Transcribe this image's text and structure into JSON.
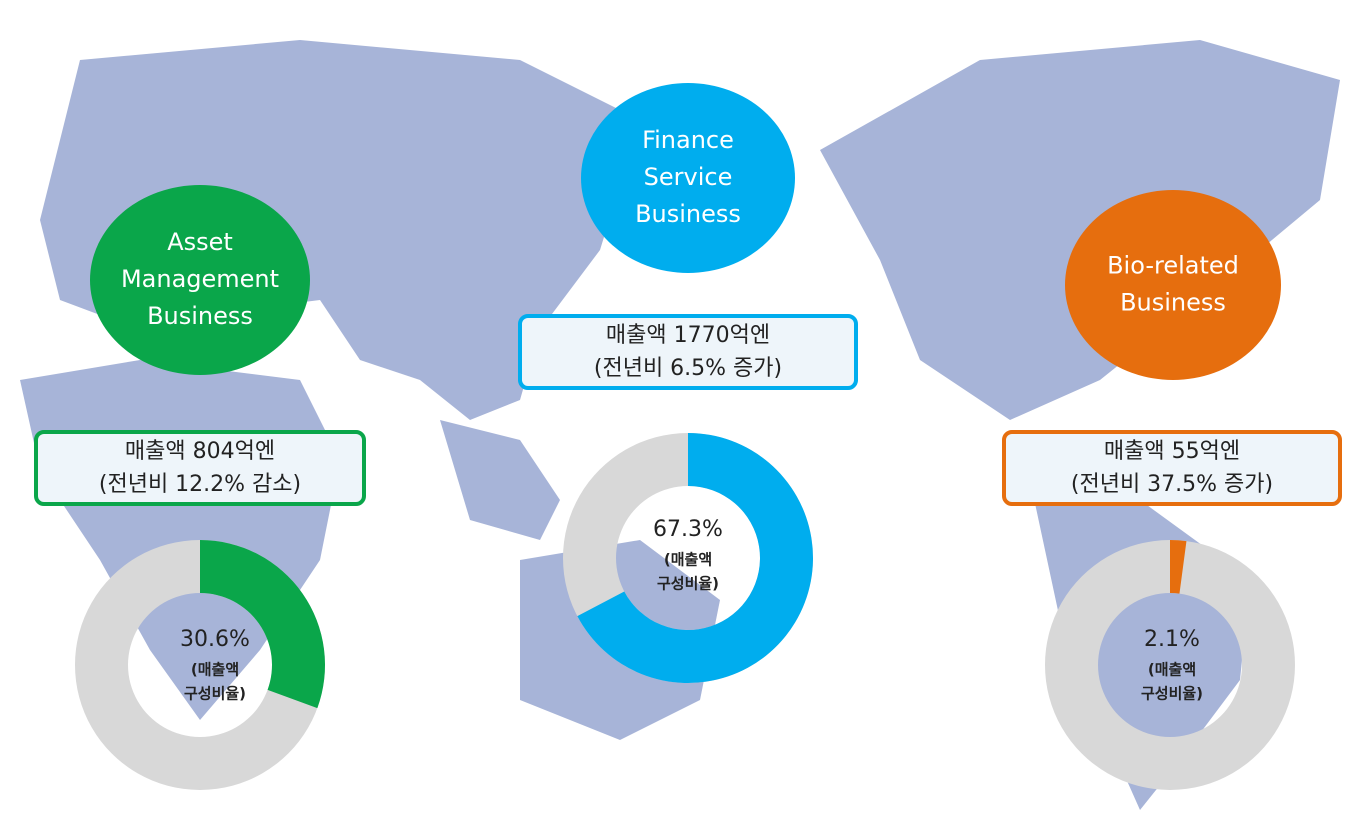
{
  "chart_data": [
    {
      "type": "donut",
      "title": [
        "Asset",
        "Management",
        "Business"
      ],
      "box": [
        "매출액 804억엔",
        "(전년비 12.2% 감소)"
      ],
      "color": "#0aa64a",
      "values": [
        30.6
      ],
      "value_labels": [
        "30.6%"
      ],
      "note": [
        "(매출액",
        "구성비율)"
      ]
    },
    {
      "type": "donut",
      "title": [
        "Finance",
        "Service",
        "Business"
      ],
      "box": [
        "매출액 1770억엔",
        "(전년비 6.5% 증가)"
      ],
      "color": "#00adee",
      "values": [
        67.3
      ],
      "value_labels": [
        "67.3%"
      ],
      "note": [
        "(매출액",
        "구성비율)"
      ]
    },
    {
      "type": "donut",
      "title": [
        "Bio-related",
        "Business"
      ],
      "box": [
        "매출액 55억엔",
        "(전년비 37.5% 증가)"
      ],
      "color": "#e66e0e",
      "values": [
        2.1
      ],
      "value_labels": [
        "2.1%"
      ],
      "note": [
        "(매출액",
        "구성비율)"
      ]
    }
  ]
}
